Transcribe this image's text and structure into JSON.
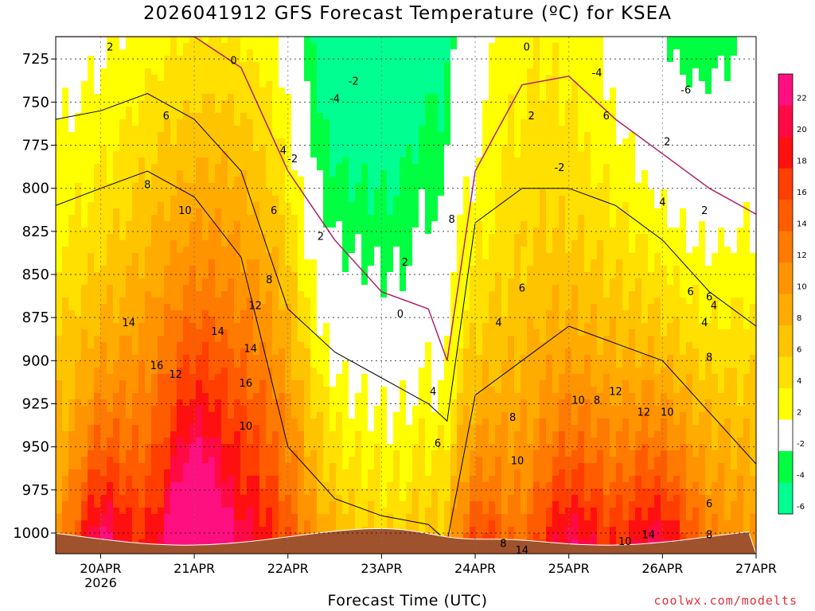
{
  "chart_data": {
    "type": "heatmap",
    "title": "2026041912 GFS Forecast Temperature (ºC) for KSEA",
    "xlabel": "Forecast Time (UTC)",
    "ylabel": "",
    "credit": "coolwx.com/modelts",
    "x_ticks": [
      "20APR",
      "21APR",
      "22APR",
      "23APR",
      "24APR",
      "25APR",
      "26APR",
      "27APR"
    ],
    "x_year_label": "2026",
    "y_ticks": [
      725,
      750,
      775,
      800,
      825,
      850,
      875,
      900,
      925,
      950,
      975,
      1000
    ],
    "ylim": [
      1012,
      712
    ],
    "xlim_days": [
      -0.48,
      7.0
    ],
    "grid": true,
    "colorbar_levels": [
      22,
      20,
      18,
      16,
      14,
      12,
      10,
      8,
      6,
      4,
      2,
      -2,
      -4,
      -6
    ],
    "colorbar_colors": [
      "#ff0f7f",
      "#ff0a45",
      "#ff1010",
      "#ff3e00",
      "#ff5c00",
      "#ff7a00",
      "#ff9400",
      "#ffab00",
      "#ffc400",
      "#ffe000",
      "#ffff00",
      "#ffffff",
      "#00ff40",
      "#00ff90"
    ],
    "series": [
      {
        "name": "0C line (pressure hPa)",
        "time_days": [
          -0.48,
          0,
          0.5,
          1,
          1.5,
          2,
          2.5,
          3,
          3.5,
          3.7,
          4,
          4.5,
          5,
          5.5,
          6,
          6.5,
          7
        ],
        "values": [
          712,
          712,
          712,
          712,
          730,
          790,
          830,
          860,
          870,
          900,
          790,
          740,
          735,
          760,
          780,
          800,
          815
        ]
      },
      {
        "name": "4C line (pressure hPa)",
        "time_days": [
          -0.48,
          0,
          0.5,
          1,
          1.5,
          2,
          2.5,
          3,
          3.5,
          3.7,
          4,
          4.5,
          5,
          5.5,
          6,
          6.5,
          7
        ],
        "values": [
          760,
          755,
          745,
          760,
          790,
          870,
          895,
          910,
          925,
          935,
          820,
          800,
          800,
          810,
          830,
          860,
          880
        ]
      },
      {
        "name": "8C line (pressure hPa)",
        "time_days": [
          -0.48,
          0,
          0.5,
          1,
          1.5,
          2,
          2.5,
          3,
          3.5,
          3.7,
          4,
          4.5,
          5,
          5.5,
          6,
          6.5,
          7
        ],
        "values": [
          810,
          800,
          790,
          805,
          840,
          950,
          980,
          990,
          995,
          1005,
          920,
          900,
          880,
          890,
          900,
          930,
          960
        ]
      }
    ],
    "contour_labels": [
      "2",
      "6",
      "8",
      "10",
      "14",
      "16",
      "12",
      "14",
      "14",
      "16",
      "12",
      "10",
      "8",
      "6",
      "4",
      "2",
      "0",
      "-2",
      "-4",
      "-2",
      "0",
      "2",
      "4",
      "6",
      "8",
      "4",
      "6",
      "2",
      "0",
      "-2",
      "-4",
      "-6",
      "4",
      "6",
      "4",
      "2",
      "6",
      "8",
      "10",
      "12",
      "8",
      "10",
      "12",
      "10",
      "14",
      "10",
      "14",
      "8",
      "8",
      "6",
      "4",
      "6",
      "2",
      "8"
    ]
  }
}
